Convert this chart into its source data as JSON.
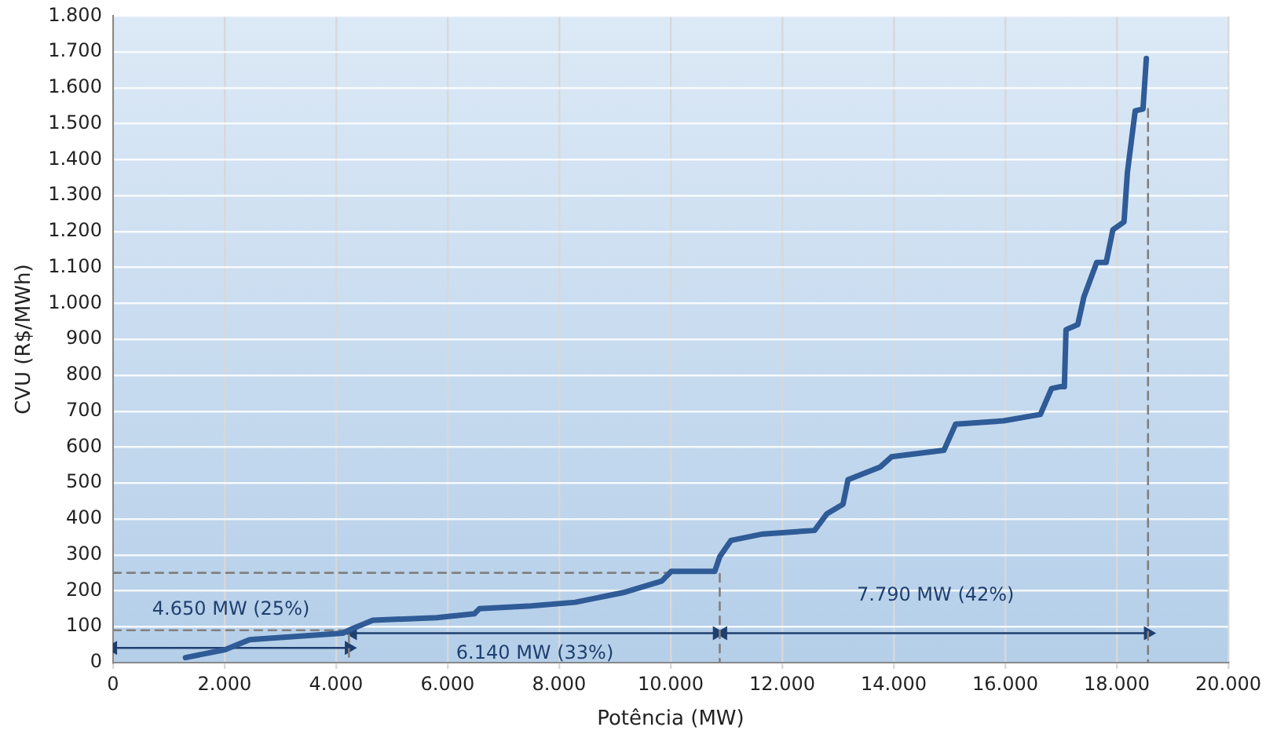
{
  "chart_data": {
    "type": "line",
    "xlabel": "Potência (MW)",
    "ylabel": "CVU (R$/MWh)",
    "xlim": [
      0,
      20000
    ],
    "xticks": [
      0,
      {
        "value": 2000,
        "label": "2.000"
      },
      {
        "value": 4000,
        "label": "4.000"
      },
      {
        "value": 6000,
        "label": "6.000"
      },
      {
        "value": 8000,
        "label": "8.000"
      },
      {
        "value": 10000,
        "label": "10.000"
      },
      {
        "value": 12000,
        "label": "12.000"
      },
      {
        "value": 14000,
        "label": "14.000"
      },
      {
        "value": 16000,
        "label": "16.000"
      },
      {
        "value": 18000,
        "label": "18.000"
      },
      {
        "value": 20000,
        "label": "20.000"
      }
    ],
    "ylim": [
      0,
      1800
    ],
    "yticks": [
      0,
      100,
      200,
      300,
      400,
      500,
      600,
      700,
      800,
      900,
      {
        "value": 1000,
        "label": "1.000"
      },
      {
        "value": 1100,
        "label": "1.100"
      },
      {
        "value": 1200,
        "label": "1.200"
      },
      {
        "value": 1300,
        "label": "1.300"
      },
      {
        "value": 1400,
        "label": "1.400"
      },
      {
        "value": 1500,
        "label": "1.500"
      },
      {
        "value": 1600,
        "label": "1.600"
      },
      {
        "value": 1700,
        "label": "1.700"
      },
      {
        "value": 1800,
        "label": "1.800"
      }
    ],
    "grid": true,
    "legend": false,
    "marker": "none",
    "line_style": "solid",
    "series": [
      {
        "color": "#2f5b97",
        "x": [
          1300,
          2010,
          2450,
          3000,
          4120,
          4300,
          4660,
          5800,
          6480,
          6570,
          7500,
          8290,
          9150,
          9840,
          10010,
          10790,
          10880,
          11080,
          11650,
          12580,
          12800,
          13090,
          13180,
          13760,
          13960,
          14900,
          15110,
          15970,
          16630,
          16830,
          16980,
          17060,
          17090,
          17300,
          17410,
          17640,
          17810,
          17930,
          18130,
          18190,
          18330,
          18470,
          18530
        ],
        "values": [
          14,
          36,
          64,
          70,
          82,
          95,
          118,
          125,
          136,
          150,
          158,
          168,
          195,
          227,
          254,
          254,
          295,
          340,
          358,
          368,
          414,
          441,
          509,
          545,
          573,
          591,
          664,
          673,
          691,
          763,
          768,
          768,
          927,
          941,
          1018,
          1114,
          1114,
          1205,
          1227,
          1364,
          1536,
          1541,
          1682
        ]
      },
      {
        "color": "#808080",
        "line_style": "dashed",
        "x": [
          0,
          4230,
          4230
        ],
        "values": [
          90,
          90,
          0
        ]
      },
      {
        "color": "#808080",
        "line_style": "dashed",
        "x": [
          0,
          10880,
          10880
        ],
        "values": [
          250,
          250,
          0
        ]
      },
      {
        "color": "#808080",
        "line_style": "dashed",
        "x": [
          18560,
          18560
        ],
        "values": [
          1541,
          0
        ]
      },
      {
        "color": "#1f3f6f",
        "marker": "triangle",
        "x": [
          0,
          4230
        ],
        "values": [
          41,
          41
        ]
      },
      {
        "color": "#1f3f6f",
        "marker": "triangle",
        "x": [
          4300,
          10830
        ],
        "values": [
          82,
          82
        ]
      },
      {
        "color": "#1f3f6f",
        "marker": "triangle",
        "x": [
          10940,
          18560
        ],
        "values": [
          82,
          82
        ]
      }
    ],
    "annotations": [
      "4.650 MW (25%)",
      "6.140 MW (33%)",
      "7.790 MW (42%)"
    ]
  }
}
